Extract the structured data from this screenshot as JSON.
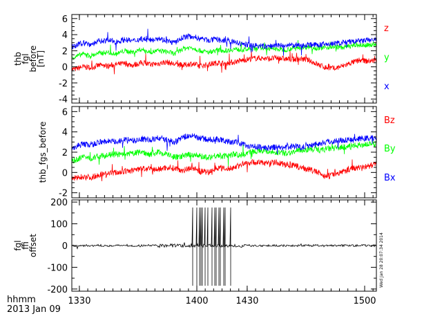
{
  "colors": {
    "axis": "#000000",
    "red": "#ff0000",
    "green": "#00ff00",
    "blue": "#0000ff",
    "black": "#000000"
  },
  "footer": {
    "time_format": "hhmm",
    "date": "2013 Jan 09"
  },
  "x_ticks": [
    {
      "value": 1330,
      "label": "1330"
    },
    {
      "value": 1400,
      "label": "1400"
    },
    {
      "value": 1430,
      "label": "1430"
    },
    {
      "value": 1500,
      "label": "1500"
    }
  ],
  "side_stamp": "Wed Jan 28 20:07:34 2014",
  "chart_data": [
    {
      "type": "line",
      "ylabel_lines": [
        "thb",
        "fgl",
        "before",
        "[nT]"
      ],
      "ylim": [
        -4.5,
        6.5
      ],
      "yticks": [
        -4,
        -2,
        0,
        2,
        4,
        6
      ],
      "x": [
        1327,
        1332,
        1337,
        1342,
        1347,
        1352,
        1357,
        1362,
        1367,
        1372,
        1377,
        1382,
        1387,
        1392,
        1397,
        1402,
        1407,
        1412,
        1417,
        1422,
        1427,
        1432,
        1437,
        1442,
        1447,
        1452,
        1457,
        1462,
        1467,
        1472,
        1477,
        1482,
        1487,
        1492,
        1497,
        1502,
        1506
      ],
      "series": [
        {
          "name": "z",
          "color": "#ff0000",
          "noise": 0.35,
          "values": [
            -0.3,
            0.0,
            -0.1,
            0.2,
            0.1,
            0.3,
            0.4,
            0.2,
            0.5,
            0.3,
            0.4,
            0.6,
            0.3,
            0.2,
            0.4,
            0.1,
            0.3,
            0.5,
            0.4,
            0.6,
            0.8,
            1.0,
            1.1,
            1.0,
            1.1,
            1.0,
            0.9,
            1.0,
            0.8,
            0.3,
            -0.1,
            -0.2,
            0.1,
            0.5,
            0.8,
            0.7,
            0.8
          ]
        },
        {
          "name": "y",
          "color": "#00ff00",
          "noise": 0.3,
          "values": [
            1.2,
            1.6,
            1.4,
            1.7,
            1.8,
            1.6,
            2.0,
            1.8,
            2.2,
            1.8,
            2.0,
            1.9,
            1.6,
            2.3,
            2.4,
            2.0,
            1.8,
            2.1,
            2.0,
            2.2,
            2.1,
            2.2,
            2.4,
            2.3,
            2.2,
            2.1,
            2.3,
            2.4,
            2.5,
            2.3,
            2.4,
            2.5,
            2.4,
            2.6,
            2.7,
            2.7,
            2.8
          ]
        },
        {
          "name": "x",
          "color": "#0000ff",
          "noise": 0.35,
          "values": [
            2.5,
            3.0,
            2.8,
            3.2,
            3.3,
            3.1,
            3.4,
            3.2,
            3.5,
            3.3,
            3.6,
            3.2,
            3.0,
            3.7,
            3.8,
            3.5,
            3.3,
            3.4,
            3.2,
            3.1,
            2.8,
            2.7,
            2.6,
            2.5,
            2.7,
            2.6,
            2.7,
            2.6,
            2.8,
            2.7,
            2.8,
            2.9,
            3.0,
            3.1,
            3.2,
            3.3,
            3.4
          ]
        }
      ]
    },
    {
      "type": "line",
      "ylabel_lines": [
        "thb_fgs_before"
      ],
      "ylim": [
        -2.5,
        6.5
      ],
      "yticks": [
        -2,
        0,
        2,
        4,
        6
      ],
      "x": [
        1327,
        1332,
        1337,
        1342,
        1347,
        1352,
        1357,
        1362,
        1367,
        1372,
        1377,
        1382,
        1387,
        1392,
        1397,
        1402,
        1407,
        1412,
        1417,
        1422,
        1427,
        1432,
        1437,
        1442,
        1447,
        1452,
        1457,
        1462,
        1467,
        1472,
        1477,
        1482,
        1487,
        1492,
        1497,
        1502,
        1506
      ],
      "series": [
        {
          "name": "Bz",
          "color": "#ff0000",
          "noise": 0.3,
          "values": [
            -0.6,
            -0.4,
            -0.5,
            -0.2,
            -0.1,
            0.0,
            0.1,
            0.2,
            0.4,
            0.3,
            0.3,
            0.5,
            0.4,
            0.2,
            0.5,
            0.1,
            0.0,
            0.5,
            0.3,
            0.5,
            0.8,
            1.0,
            1.0,
            0.9,
            1.0,
            0.8,
            0.7,
            0.5,
            0.3,
            0.0,
            -0.4,
            -0.2,
            0.1,
            0.4,
            0.5,
            0.6,
            0.8
          ]
        },
        {
          "name": "By",
          "color": "#00ff00",
          "noise": 0.3,
          "values": [
            1.2,
            1.5,
            1.4,
            1.6,
            1.7,
            1.8,
            1.7,
            1.9,
            2.0,
            1.8,
            2.0,
            1.8,
            1.5,
            1.6,
            1.8,
            1.6,
            1.5,
            1.7,
            1.6,
            1.8,
            1.7,
            2.0,
            2.2,
            2.1,
            2.0,
            1.9,
            2.0,
            2.2,
            2.3,
            2.2,
            2.3,
            2.4,
            2.5,
            2.6,
            2.7,
            2.8,
            2.8
          ]
        },
        {
          "name": "Bx",
          "color": "#0000ff",
          "noise": 0.3,
          "values": [
            2.5,
            2.8,
            2.7,
            3.0,
            3.1,
            3.0,
            3.2,
            3.1,
            3.3,
            3.2,
            3.4,
            3.2,
            3.0,
            3.5,
            3.6,
            3.4,
            3.2,
            3.3,
            3.1,
            3.0,
            2.8,
            2.6,
            2.5,
            2.4,
            2.5,
            2.4,
            2.6,
            2.5,
            2.7,
            2.8,
            3.0,
            3.1,
            3.2,
            3.2,
            3.3,
            3.4,
            3.4
          ]
        }
      ]
    },
    {
      "type": "line",
      "ylabel_lines": [
        "fgl",
        "ffi",
        "offset"
      ],
      "ylim": [
        -210,
        210
      ],
      "yticks": [
        -200,
        -100,
        0,
        100,
        200
      ],
      "series": [
        {
          "name": "",
          "color": "#000000",
          "baseline": 0,
          "noise": 5,
          "spike_low": -185,
          "spike_high": 175,
          "spike_times": [
            1397.5,
            1400,
            1401.5,
            1402.5,
            1403.2,
            1405,
            1406.5,
            1409,
            1410.5,
            1411.5,
            1413,
            1414,
            1416,
            1417,
            1420
          ]
        }
      ]
    }
  ]
}
